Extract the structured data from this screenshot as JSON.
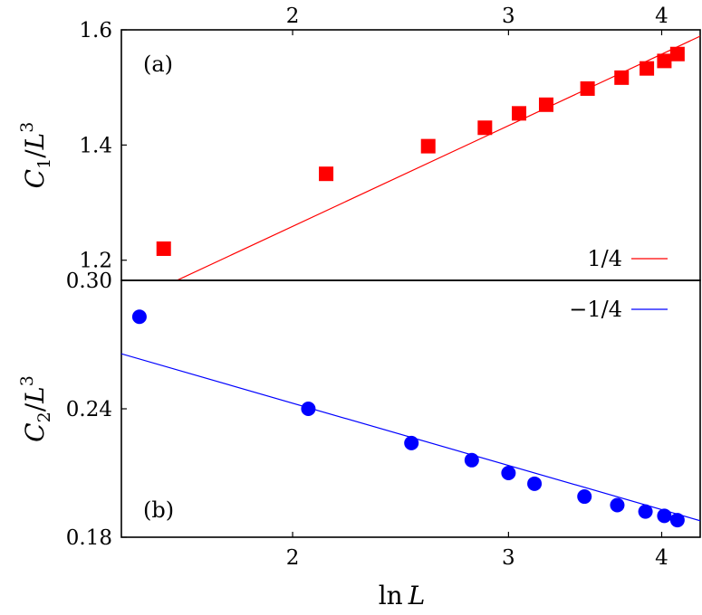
{
  "chart_data": [
    {
      "panel": "top",
      "type": "scatter",
      "panel_label": "(a)",
      "ylabel": "C_1/L^3",
      "xaxis_position": "top",
      "xscale": "log",
      "xlim": [
        1.45,
        4.3
      ],
      "ylim": [
        1.165,
        1.6
      ],
      "xticks": [
        2,
        3,
        4
      ],
      "xtick_labels": [
        "2",
        "3",
        "4"
      ],
      "yticks": [
        1.2,
        1.4,
        1.6
      ],
      "ytick_labels": [
        "1.2",
        "1.4",
        "1.6"
      ],
      "legend_placement": "bottom-right",
      "series": [
        {
          "marker": "square",
          "color": "#ff0000",
          "x": [
            1.57,
            2.13,
            2.58,
            2.87,
            3.06,
            3.22,
            3.48,
            3.71,
            3.89,
            4.02,
            4.12
          ],
          "y": [
            1.22,
            1.35,
            1.398,
            1.43,
            1.455,
            1.47,
            1.498,
            1.517,
            1.533,
            1.546,
            1.558
          ]
        }
      ],
      "fit_line": {
        "name": "1/4",
        "color": "#ff0000",
        "x": [
          1.45,
          4.3
        ],
        "y": [
          1.12,
          1.589
        ]
      }
    },
    {
      "panel": "bottom",
      "type": "scatter",
      "panel_label": "(b)",
      "ylabel": "C_2/L^3",
      "xlabel": "ln L",
      "xaxis_position": "bottom",
      "xscale": "log",
      "xlim": [
        1.45,
        4.3
      ],
      "ylim": [
        0.18,
        0.3
      ],
      "xticks": [
        2,
        3,
        4
      ],
      "xtick_labels": [
        "2",
        "3",
        "4"
      ],
      "yticks": [
        0.18,
        0.24,
        0.3
      ],
      "ytick_labels": [
        "0.18",
        "0.24",
        "0.30"
      ],
      "legend_placement": "top-right",
      "series": [
        {
          "marker": "circle",
          "color": "#0000ff",
          "x": [
            1.5,
            2.06,
            2.5,
            2.8,
            3.0,
            3.15,
            3.46,
            3.68,
            3.88,
            4.02,
            4.12
          ],
          "y": [
            0.283,
            0.24,
            0.224,
            0.216,
            0.21,
            0.205,
            0.199,
            0.195,
            0.192,
            0.19,
            0.188
          ]
        }
      ],
      "fit_line": {
        "name": "−1/4",
        "color": "#0000ff",
        "x": [
          1.45,
          4.3
        ],
        "y": [
          0.2657,
          0.1877
        ]
      }
    }
  ]
}
